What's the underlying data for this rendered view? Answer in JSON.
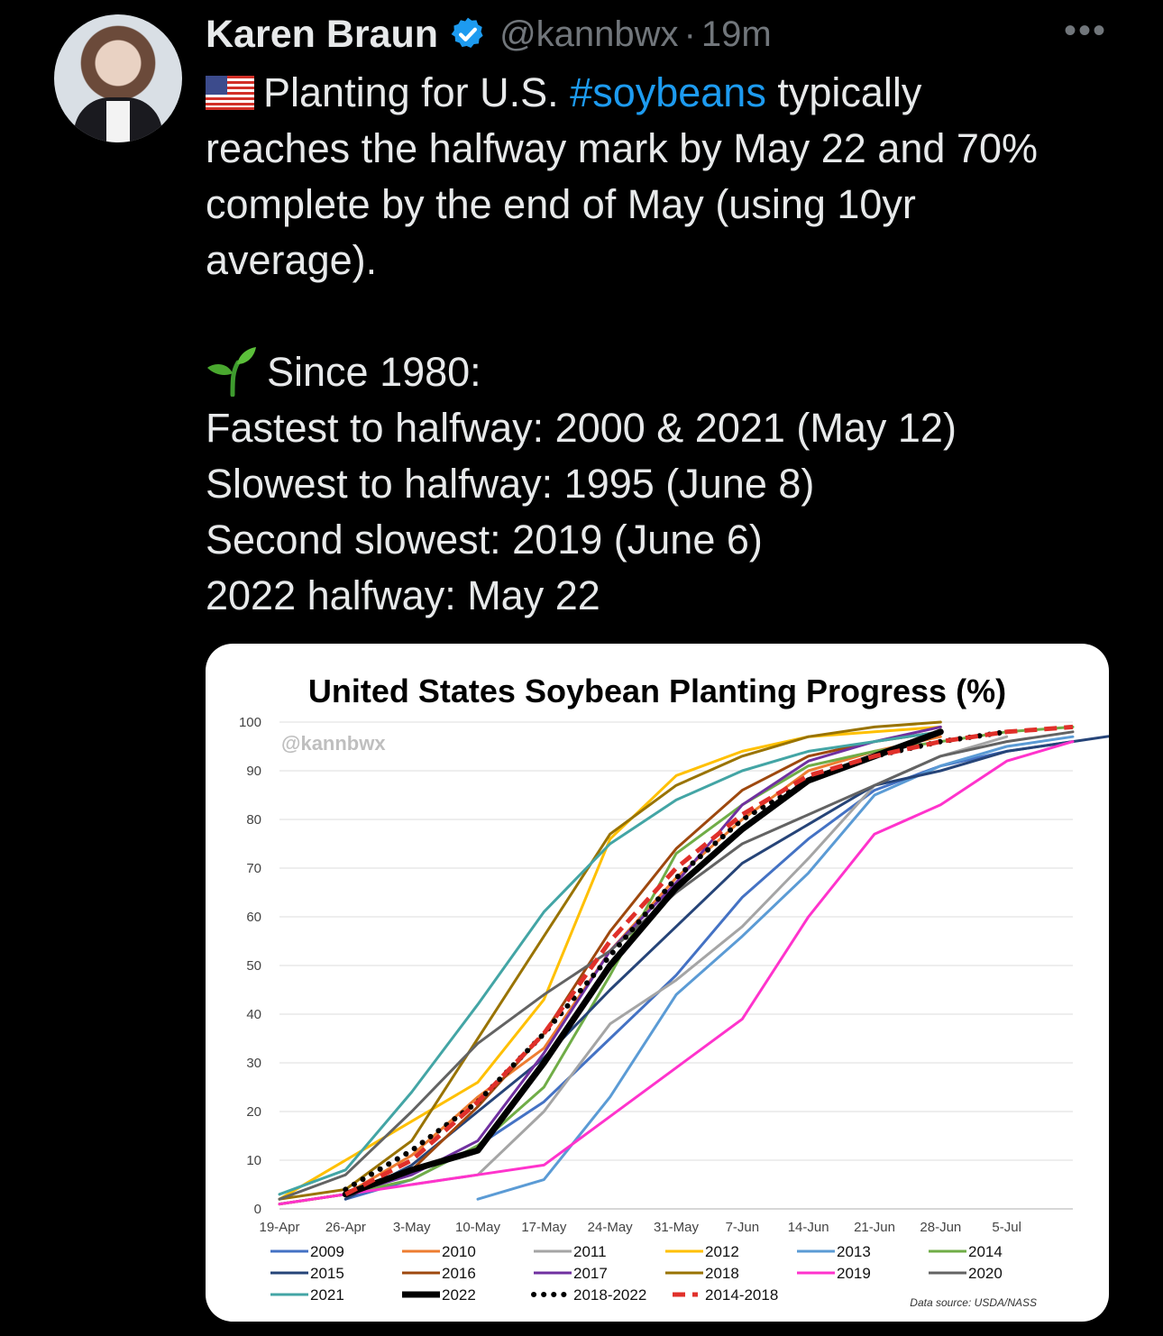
{
  "tweet": {
    "author_name": "Karen Braun",
    "handle": "@kannbwx",
    "separator": "·",
    "time": "19m",
    "more_icon": "more-icon",
    "verified_icon": "verified-badge-icon",
    "text": {
      "line1_before_hashtag": "Planting for U.S.",
      "hashtag": "#soybeans",
      "line1_after_hashtag": "typically",
      "line2": "reaches the halfway mark by May 22 and 70%",
      "line3": "complete by the end of May (using 10yr",
      "line4": "average).",
      "line5": "Since 1980:",
      "line6": "Fastest to halfway: 2000 & 2021 (May 12)",
      "line7": "Slowest to halfway: 1995 (June 8)",
      "line8": "Second slowest: 2019 (June 6)",
      "line9": "2022 halfway: May 22"
    }
  },
  "chart_data": {
    "type": "line",
    "title": "United States Soybean Planting Progress (%)",
    "watermark": "@kannbwx",
    "source": "Data source: USDA/NASS",
    "ylim": [
      0,
      100
    ],
    "y_ticks": [
      "0",
      "10",
      "20",
      "30",
      "40",
      "50",
      "60",
      "70",
      "80",
      "90",
      "100"
    ],
    "x_ticks": [
      "19-Apr",
      "26-Apr",
      "3-May",
      "10-May",
      "17-May",
      "24-May",
      "31-May",
      "7-Jun",
      "14-Jun",
      "21-Jun",
      "28-Jun",
      "5-Jul"
    ],
    "x_unit": "days after 19-Apr",
    "series": [
      {
        "name": "2009",
        "color": "#4472c4",
        "style": "solid",
        "width": 3,
        "points": [
          [
            7,
            2
          ],
          [
            14,
            6
          ],
          [
            21,
            13
          ],
          [
            28,
            22
          ],
          [
            35,
            35
          ],
          [
            42,
            48
          ],
          [
            49,
            64
          ],
          [
            56,
            76
          ],
          [
            63,
            86
          ],
          [
            70,
            91
          ],
          [
            77,
            94
          ],
          [
            84,
            96
          ]
        ]
      },
      {
        "name": "2010",
        "color": "#ed7d31",
        "style": "solid",
        "width": 3,
        "points": [
          [
            0,
            1
          ],
          [
            7,
            3
          ],
          [
            14,
            11
          ],
          [
            21,
            23
          ],
          [
            28,
            33
          ],
          [
            35,
            53
          ],
          [
            42,
            68
          ],
          [
            49,
            80
          ],
          [
            56,
            90
          ],
          [
            63,
            94
          ],
          [
            70,
            97
          ]
        ]
      },
      {
        "name": "2011",
        "color": "#a5a5a5",
        "style": "solid",
        "width": 3,
        "points": [
          [
            14,
            5
          ],
          [
            21,
            7
          ],
          [
            28,
            20
          ],
          [
            35,
            38
          ],
          [
            42,
            47
          ],
          [
            49,
            58
          ],
          [
            56,
            72
          ],
          [
            63,
            87
          ],
          [
            70,
            93
          ],
          [
            77,
            97
          ]
        ]
      },
      {
        "name": "2012",
        "color": "#ffc000",
        "style": "solid",
        "width": 3,
        "points": [
          [
            0,
            2
          ],
          [
            7,
            10
          ],
          [
            14,
            18
          ],
          [
            21,
            26
          ],
          [
            28,
            43
          ],
          [
            35,
            76
          ],
          [
            42,
            89
          ],
          [
            49,
            94
          ],
          [
            56,
            97
          ],
          [
            63,
            98
          ],
          [
            70,
            99
          ]
        ]
      },
      {
        "name": "2013",
        "color": "#5b9bd5",
        "style": "solid",
        "width": 3,
        "points": [
          [
            21,
            2
          ],
          [
            28,
            6
          ],
          [
            35,
            23
          ],
          [
            42,
            44
          ],
          [
            49,
            56
          ],
          [
            56,
            69
          ],
          [
            63,
            85
          ],
          [
            70,
            91
          ],
          [
            77,
            95
          ],
          [
            84,
            97
          ]
        ]
      },
      {
        "name": "2014",
        "color": "#70ad47",
        "style": "solid",
        "width": 3,
        "points": [
          [
            0,
            1
          ],
          [
            7,
            3
          ],
          [
            14,
            6
          ],
          [
            21,
            13
          ],
          [
            28,
            25
          ],
          [
            35,
            48
          ],
          [
            42,
            73
          ],
          [
            49,
            83
          ],
          [
            56,
            91
          ],
          [
            63,
            94
          ],
          [
            70,
            96
          ],
          [
            77,
            98
          ],
          [
            84,
            99
          ]
        ]
      },
      {
        "name": "2015",
        "color": "#264478",
        "style": "solid",
        "width": 3,
        "points": [
          [
            7,
            2
          ],
          [
            14,
            9
          ],
          [
            21,
            20
          ],
          [
            28,
            31
          ],
          [
            35,
            45
          ],
          [
            42,
            58
          ],
          [
            49,
            71
          ],
          [
            56,
            79
          ],
          [
            63,
            87
          ],
          [
            70,
            90
          ],
          [
            77,
            94
          ],
          [
            84,
            96
          ],
          [
            91,
            98
          ]
        ]
      },
      {
        "name": "2016",
        "color": "#9e480e",
        "style": "solid",
        "width": 3,
        "points": [
          [
            0,
            1
          ],
          [
            7,
            3
          ],
          [
            14,
            8
          ],
          [
            21,
            21
          ],
          [
            28,
            36
          ],
          [
            35,
            57
          ],
          [
            42,
            74
          ],
          [
            49,
            86
          ],
          [
            56,
            93
          ],
          [
            63,
            96
          ],
          [
            70,
            98
          ]
        ]
      },
      {
        "name": "2017",
        "color": "#7030a0",
        "style": "solid",
        "width": 3,
        "points": [
          [
            7,
            3
          ],
          [
            14,
            7
          ],
          [
            21,
            14
          ],
          [
            28,
            32
          ],
          [
            35,
            53
          ],
          [
            42,
            67
          ],
          [
            49,
            83
          ],
          [
            56,
            92
          ],
          [
            63,
            96
          ],
          [
            70,
            99
          ]
        ]
      },
      {
        "name": "2018",
        "color": "#997300",
        "style": "solid",
        "width": 3,
        "points": [
          [
            0,
            2
          ],
          [
            7,
            4
          ],
          [
            14,
            14
          ],
          [
            21,
            35
          ],
          [
            28,
            56
          ],
          [
            35,
            77
          ],
          [
            42,
            87
          ],
          [
            49,
            93
          ],
          [
            56,
            97
          ],
          [
            63,
            99
          ],
          [
            70,
            100
          ]
        ]
      },
      {
        "name": "2019",
        "color": "#ff33cc",
        "style": "solid",
        "width": 3,
        "points": [
          [
            0,
            1
          ],
          [
            7,
            3
          ],
          [
            14,
            5
          ],
          [
            21,
            7
          ],
          [
            28,
            9
          ],
          [
            35,
            19
          ],
          [
            42,
            29
          ],
          [
            49,
            39
          ],
          [
            56,
            60
          ],
          [
            63,
            77
          ],
          [
            70,
            83
          ],
          [
            77,
            92
          ],
          [
            84,
            96
          ]
        ]
      },
      {
        "name": "2020",
        "color": "#636363",
        "style": "solid",
        "width": 3,
        "points": [
          [
            0,
            2
          ],
          [
            7,
            7
          ],
          [
            14,
            20
          ],
          [
            21,
            34
          ],
          [
            28,
            44
          ],
          [
            35,
            53
          ],
          [
            42,
            65
          ],
          [
            49,
            75
          ],
          [
            56,
            81
          ],
          [
            63,
            87
          ],
          [
            70,
            93
          ],
          [
            77,
            96
          ],
          [
            84,
            98
          ]
        ]
      },
      {
        "name": "2021",
        "color": "#43a5a5",
        "style": "solid",
        "width": 3,
        "points": [
          [
            0,
            3
          ],
          [
            7,
            8
          ],
          [
            14,
            24
          ],
          [
            21,
            42
          ],
          [
            28,
            61
          ],
          [
            35,
            75
          ],
          [
            42,
            84
          ],
          [
            49,
            90
          ],
          [
            56,
            94
          ],
          [
            63,
            96
          ],
          [
            70,
            98
          ]
        ]
      },
      {
        "name": "2022",
        "color": "#000000",
        "style": "solid",
        "width": 7,
        "points": [
          [
            7,
            3
          ],
          [
            14,
            8
          ],
          [
            21,
            12
          ],
          [
            28,
            30
          ],
          [
            35,
            50
          ],
          [
            42,
            66
          ],
          [
            49,
            78
          ],
          [
            56,
            88
          ],
          [
            63,
            93
          ],
          [
            70,
            98
          ]
        ]
      },
      {
        "name": "2018-2022",
        "color": "#000000",
        "style": "dotted",
        "width": 5,
        "points": [
          [
            7,
            4
          ],
          [
            14,
            12
          ],
          [
            21,
            22
          ],
          [
            28,
            36
          ],
          [
            35,
            52
          ],
          [
            42,
            68
          ],
          [
            49,
            80
          ],
          [
            56,
            88
          ],
          [
            63,
            93
          ],
          [
            70,
            96
          ],
          [
            77,
            98
          ]
        ]
      },
      {
        "name": "2014-2018",
        "color": "#e0302a",
        "style": "dashed",
        "width": 5,
        "points": [
          [
            7,
            3
          ],
          [
            14,
            10
          ],
          [
            21,
            22
          ],
          [
            28,
            36
          ],
          [
            35,
            55
          ],
          [
            42,
            70
          ],
          [
            49,
            81
          ],
          [
            56,
            89
          ],
          [
            63,
            93
          ],
          [
            70,
            96
          ],
          [
            77,
            98
          ],
          [
            84,
            99
          ]
        ]
      }
    ]
  }
}
